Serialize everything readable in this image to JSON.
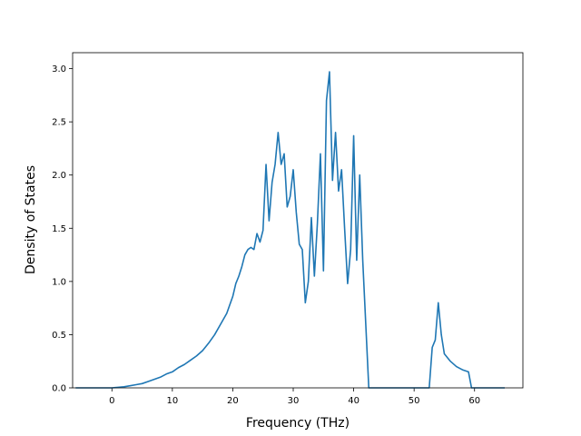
{
  "chart_data": {
    "type": "line",
    "title": "",
    "xlabel": "Frequency (THz)",
    "ylabel": "Density of States",
    "xlim": [
      -6.5,
      68.0
    ],
    "ylim": [
      0.0,
      3.15
    ],
    "xticks": [
      0,
      10,
      20,
      30,
      40,
      50,
      60
    ],
    "yticks": [
      0.0,
      0.5,
      1.0,
      1.5,
      2.0,
      2.5,
      3.0
    ],
    "xtick_labels": [
      "0",
      "10",
      "20",
      "30",
      "40",
      "50",
      "60"
    ],
    "ytick_labels": [
      "0.0",
      "0.5",
      "1.0",
      "1.5",
      "2.0",
      "2.5",
      "3.0"
    ],
    "grid": false,
    "color": "#1f77b4",
    "series": [
      {
        "x": [
          -6,
          0,
          1,
          2,
          3,
          4,
          5,
          6,
          7,
          8,
          9,
          10,
          11,
          12,
          13,
          14,
          15,
          16,
          17,
          18,
          19,
          20,
          20.5,
          21,
          21.5,
          22,
          22.5,
          23,
          23.5,
          24,
          24.5,
          25,
          25.5,
          26,
          26.5,
          27,
          27.5,
          28,
          28.5,
          29,
          29.5,
          30,
          30.5,
          31,
          31.5,
          32,
          32.5,
          33,
          33.5,
          34,
          34.5,
          35,
          35.5,
          36,
          36.5,
          37,
          37.5,
          38,
          38.5,
          39,
          39.5,
          40,
          40.5,
          41,
          41.5,
          42,
          42.5,
          52.5,
          53,
          53.5,
          54,
          54.5,
          55,
          56,
          57,
          58,
          59,
          59.5,
          65
        ],
        "y": [
          0.0,
          0.0,
          0.005,
          0.01,
          0.02,
          0.03,
          0.04,
          0.06,
          0.08,
          0.1,
          0.13,
          0.15,
          0.19,
          0.22,
          0.26,
          0.3,
          0.35,
          0.42,
          0.5,
          0.6,
          0.7,
          0.86,
          0.98,
          1.05,
          1.14,
          1.25,
          1.3,
          1.32,
          1.3,
          1.45,
          1.37,
          1.48,
          2.1,
          1.57,
          1.93,
          2.1,
          2.4,
          2.1,
          2.2,
          1.7,
          1.8,
          2.05,
          1.65,
          1.35,
          1.3,
          0.8,
          1.0,
          1.6,
          1.05,
          1.55,
          2.2,
          1.1,
          2.7,
          2.97,
          1.95,
          2.4,
          1.85,
          2.05,
          1.5,
          0.98,
          1.3,
          2.37,
          1.2,
          2.0,
          1.2,
          0.6,
          0.0,
          0.0,
          0.38,
          0.45,
          0.8,
          0.5,
          0.32,
          0.25,
          0.2,
          0.17,
          0.15,
          0.0,
          0.0
        ]
      }
    ]
  }
}
